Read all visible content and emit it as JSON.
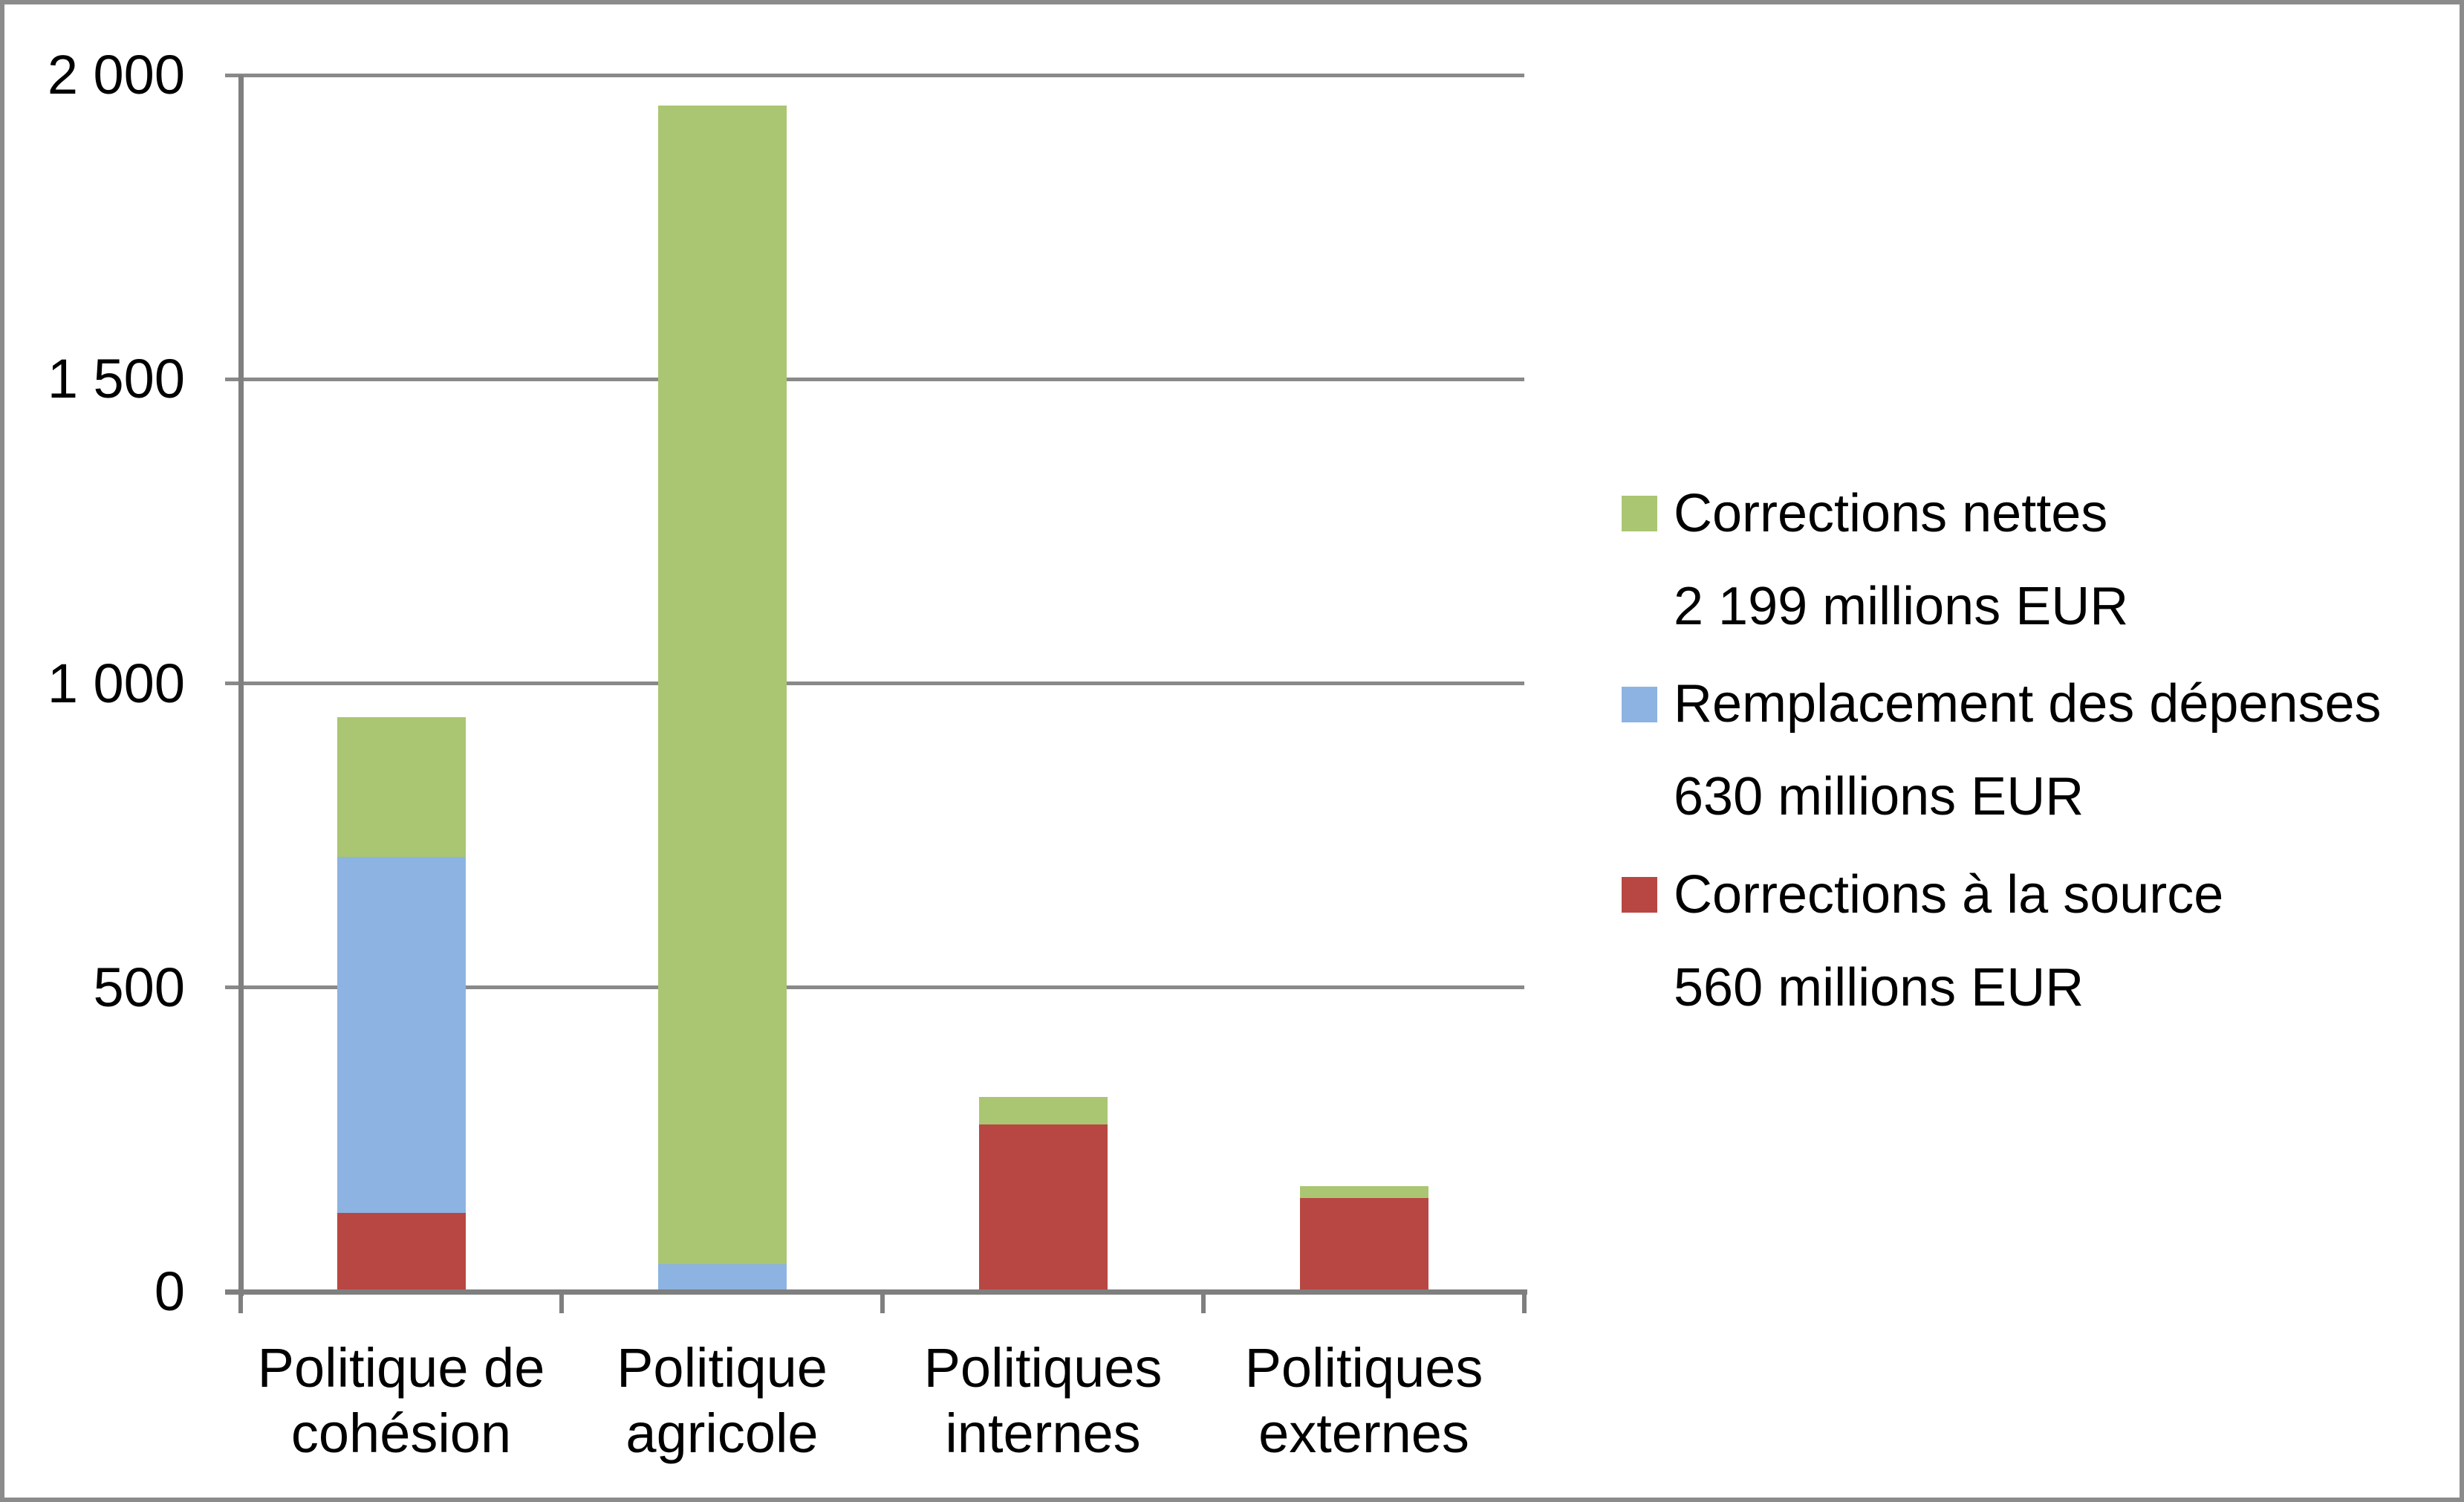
{
  "chart_data": {
    "type": "bar",
    "stacked": true,
    "grid": true,
    "background": "#ffffff",
    "frame_color": "#8b8b8b",
    "axis_color": "#7f7f7f",
    "gridline_color": "#898989",
    "categories": [
      {
        "label_line1": "Politique de",
        "label_line2": "cohésion"
      },
      {
        "label_line1": "Politique",
        "label_line2": "agricole"
      },
      {
        "label_line1": "Politiques",
        "label_line2": "internes"
      },
      {
        "label_line1": "Politiques",
        "label_line2": "externes"
      }
    ],
    "series": [
      {
        "name": "Corrections à la source",
        "color": "#b84743",
        "values": [
          130,
          0,
          275,
          155
        ],
        "total_label": "560 millions EUR"
      },
      {
        "name": "Remplacement des dépenses",
        "color": "#8db3e2",
        "values": [
          585,
          45,
          0,
          0
        ],
        "total_label": "630 millions EUR"
      },
      {
        "name": "Corrections nettes",
        "color": "#aac672",
        "values": [
          230,
          1905,
          45,
          19
        ],
        "total_label": "2 199 millions EUR"
      }
    ],
    "ylim": [
      0,
      2000
    ],
    "yticks": [
      {
        "value": 2000,
        "label": "2 000"
      },
      {
        "value": 1500,
        "label": "1 500"
      },
      {
        "value": 1000,
        "label": "1 000"
      },
      {
        "value": 500,
        "label": "500"
      },
      {
        "value": 0,
        "label": "0"
      }
    ],
    "legend": {
      "position": "right",
      "entries": [
        {
          "line1": "Corrections nettes",
          "line2": "2 199 millions EUR",
          "color": "#aac672"
        },
        {
          "line1": "Remplacement des dépenses",
          "line2": "630 millions EUR",
          "color": "#8db3e2"
        },
        {
          "line1": "Corrections à la source",
          "line2": "560 millions EUR",
          "color": "#b84743"
        }
      ]
    }
  }
}
